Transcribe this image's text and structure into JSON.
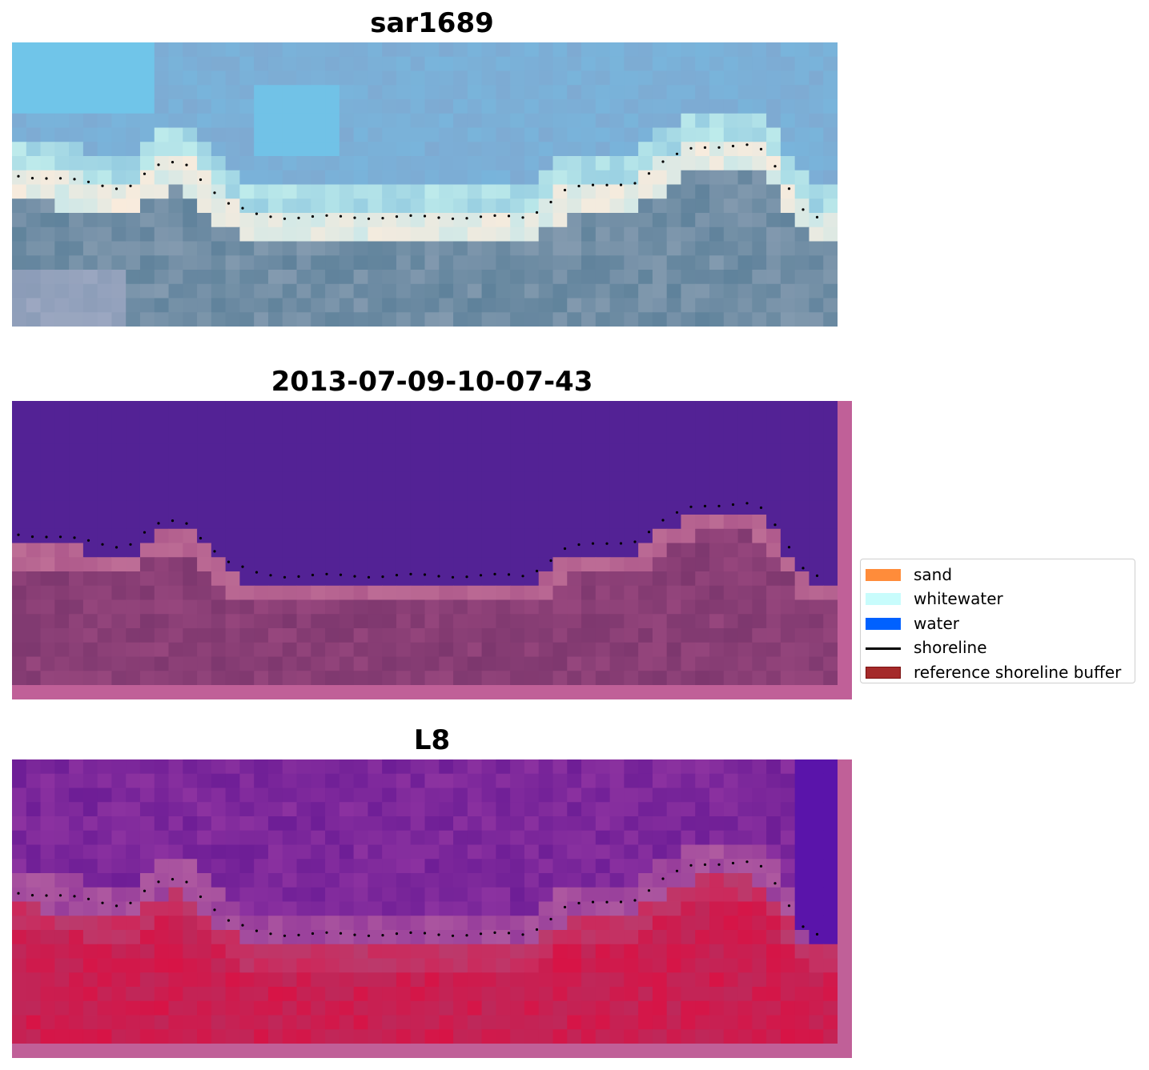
{
  "panels": [
    {
      "title": "sar1689",
      "style": "rgb"
    },
    {
      "title": "2013-07-09-10-07-43",
      "style": "classified"
    },
    {
      "title": "L8",
      "style": "index"
    }
  ],
  "legend": {
    "items": [
      {
        "label": "sand",
        "kind": "patch",
        "color": "#ff8c3a",
        "border": "#ff8c3a"
      },
      {
        "label": "whitewater",
        "kind": "patch",
        "color": "#c8fcfc",
        "border": "#c8fcfc"
      },
      {
        "label": "water",
        "kind": "patch",
        "color": "#0061ff",
        "border": "#0061ff"
      },
      {
        "label": "shoreline",
        "kind": "line",
        "color": "#000000",
        "border": "#000000"
      },
      {
        "label": "reference shoreline buffer",
        "kind": "patch",
        "color": "#a52a2a",
        "border": "#7a1010"
      }
    ]
  },
  "colors": {
    "buffer_overlay": "#c06098",
    "classified_water": "#532295",
    "shoreline_dots": "#000000"
  }
}
